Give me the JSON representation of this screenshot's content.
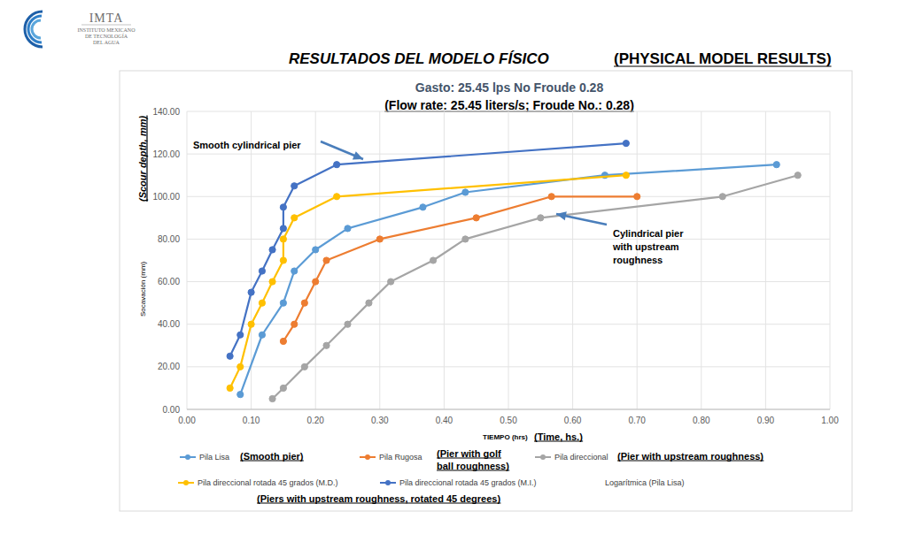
{
  "header": {
    "logo": [
      "IMTA",
      "INSTITUTO MEXICANO",
      "DE TECNOLOGÍA",
      "DEL AGUA"
    ],
    "title": "RESULTADOS DEL MODELO FÍSICO",
    "title_en": "(PHYSICAL MODEL RESULTS)"
  },
  "chart_data": {
    "type": "line",
    "title": "Gasto: 25.45 lps No Froude 0.28",
    "subtitle": "(Flow rate: 25.45 liters/s; Froude No.: 0.28)",
    "xlabel": "TIEMPO (hrs)",
    "xlabel_en": "(Time, hs.)",
    "ylabel": "Socavación (mm)",
    "ylabel_en": "(Scour depth, mm)",
    "xlim": [
      0,
      1
    ],
    "ylim": [
      0,
      140
    ],
    "xticks": [
      {
        "value": 0,
        "label": "0.00"
      },
      {
        "value": 0.1,
        "label": "0.10"
      },
      {
        "value": 0.2,
        "label": "0.20"
      },
      {
        "value": 0.3,
        "label": "0.30"
      },
      {
        "value": 0.4,
        "label": "0.40"
      },
      {
        "value": 0.5,
        "label": "0.50"
      },
      {
        "value": 0.6,
        "label": "0.60"
      },
      {
        "value": 0.7,
        "label": "0.70"
      },
      {
        "value": 0.8,
        "label": "0.80"
      },
      {
        "value": 0.9,
        "label": "0.90"
      },
      {
        "value": 1,
        "label": "1.00"
      }
    ],
    "yticks": [
      {
        "value": 0,
        "label": "0.00"
      },
      {
        "value": 20,
        "label": "20.00"
      },
      {
        "value": 40,
        "label": "40.00"
      },
      {
        "value": 60,
        "label": "60.00"
      },
      {
        "value": 80,
        "label": "80.00"
      },
      {
        "value": 100,
        "label": "100.00"
      },
      {
        "value": 120,
        "label": "120.00"
      },
      {
        "value": 140,
        "label": "140.00"
      }
    ],
    "grid": true,
    "legend": "bottom",
    "marker": "circle",
    "line_style": "solid",
    "series": [
      {
        "name": "Pila Lisa",
        "note": [
          "(Smooth pier)"
        ],
        "color": "#5b9bd5",
        "x": [
          0.083,
          0.117,
          0.15,
          0.167,
          0.2,
          0.25,
          0.367,
          0.433,
          0.65,
          0.917
        ],
        "values": [
          7,
          35,
          50,
          65,
          75,
          85,
          95,
          102,
          110,
          115
        ]
      },
      {
        "name": "Pila Rugosa",
        "note": [
          "(Pier with golf",
          "ball roughness)"
        ],
        "color": "#ed7d31",
        "x": [
          0.15,
          0.167,
          0.183,
          0.2,
          0.217,
          0.3,
          0.45,
          0.567,
          0.7
        ],
        "values": [
          32,
          40,
          50,
          60,
          70,
          80,
          90,
          100,
          100
        ]
      },
      {
        "name": "Pila direccional",
        "note": [
          "(Pier with upstream roughness)"
        ],
        "color": "#a5a5a5",
        "x": [
          0.133,
          0.15,
          0.183,
          0.217,
          0.25,
          0.283,
          0.317,
          0.383,
          0.433,
          0.55,
          0.833,
          0.95
        ],
        "values": [
          5,
          10,
          20,
          30,
          40,
          50,
          60,
          70,
          80,
          90,
          100,
          110
        ]
      },
      {
        "name": "Pila direccional rotada 45 grados (M.D.)",
        "note": [
          "(Piers with upstream roughness, rotated 45 degrees)"
        ],
        "color": "#ffc000",
        "x": [
          0.067,
          0.083,
          0.1,
          0.117,
          0.133,
          0.15,
          0.15,
          0.167,
          0.233,
          0.683
        ],
        "values": [
          10,
          20,
          40,
          50,
          60,
          70,
          80,
          90,
          100,
          110
        ]
      },
      {
        "name": "Pila direccional rotada 45 grados (M.I.)",
        "color": "#4472c4",
        "x": [
          0.067,
          0.083,
          0.1,
          0.117,
          0.133,
          0.15,
          0.15,
          0.167,
          0.233,
          0.683
        ],
        "values": [
          25,
          35,
          55,
          65,
          75,
          85,
          95,
          105,
          115,
          125
        ]
      },
      {
        "name": "Logarítmica (Pila Lisa)",
        "x": [],
        "values": []
      }
    ],
    "annotations": [
      {
        "text": [
          "Smooth cylindrical pier"
        ]
      },
      {
        "text": [
          "Cylindrical pier",
          "with upstream",
          "roughness"
        ]
      }
    ]
  }
}
